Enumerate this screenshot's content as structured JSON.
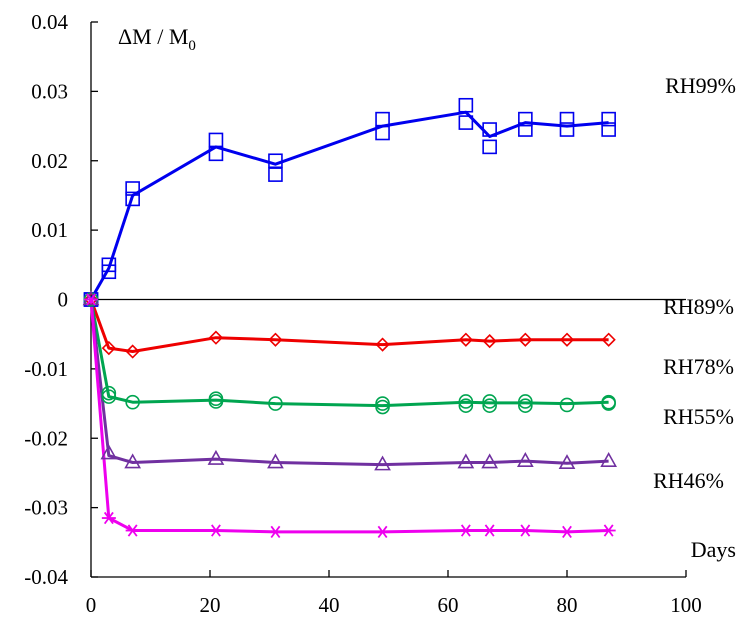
{
  "chart_data": {
    "type": "line",
    "ylabel": "ΔM / M0",
    "ylabel_main": "ΔM / M",
    "ylabel_sub": "0",
    "xlabel": "Days",
    "xlim": [
      0,
      100
    ],
    "ylim": [
      -0.04,
      0.04
    ],
    "x_ticks": [
      0,
      20,
      40,
      60,
      80,
      100
    ],
    "x_tick_labels": [
      "0",
      "20",
      "40",
      "60",
      "80",
      "100"
    ],
    "y_ticks": [
      0.04,
      0.03,
      0.02,
      0.01,
      0,
      -0.01,
      -0.02,
      -0.03,
      -0.04
    ],
    "y_tick_labels": [
      "0.04",
      "0.03",
      "0.02",
      "0.01",
      "0",
      "-0.01",
      "-0.02",
      "-0.03",
      "-0.04"
    ],
    "grid": false,
    "series": [
      {
        "name": "RH99%",
        "color": "#0000ee",
        "marker": "square",
        "line_x": [
          0,
          3,
          7,
          21,
          31,
          49,
          63,
          67,
          73,
          80,
          87
        ],
        "line_y": [
          0,
          0.0045,
          0.015,
          0.022,
          0.0195,
          0.025,
          0.027,
          0.0235,
          0.0255,
          0.025,
          0.0255
        ],
        "points_x": [
          0,
          0,
          3,
          3,
          7,
          7,
          21,
          21,
          31,
          31,
          49,
          49,
          63,
          63,
          67,
          67,
          73,
          73,
          80,
          80,
          87,
          87
        ],
        "points_y": [
          0,
          0,
          0.004,
          0.005,
          0.0145,
          0.016,
          0.021,
          0.023,
          0.018,
          0.02,
          0.024,
          0.026,
          0.0255,
          0.028,
          0.022,
          0.0245,
          0.0245,
          0.026,
          0.0245,
          0.026,
          0.0245,
          0.026
        ]
      },
      {
        "name": "RH89%",
        "color": "#ee0000",
        "marker": "diamond",
        "line_x": [
          0,
          3,
          7,
          21,
          31,
          49,
          63,
          67,
          73,
          80,
          87
        ],
        "line_y": [
          0,
          -0.007,
          -0.0075,
          -0.0055,
          -0.0058,
          -0.0065,
          -0.0058,
          -0.006,
          -0.0058,
          -0.0058,
          -0.0058
        ],
        "points_x": [
          0,
          3,
          7,
          21,
          31,
          49,
          63,
          67,
          73,
          80,
          87
        ],
        "points_y": [
          0,
          -0.007,
          -0.0075,
          -0.0055,
          -0.0058,
          -0.0065,
          -0.0058,
          -0.006,
          -0.0058,
          -0.0058,
          -0.0058
        ]
      },
      {
        "name": "RH78%",
        "color": "#00a550",
        "marker": "circle",
        "line_x": [
          0,
          3,
          7,
          21,
          31,
          49,
          63,
          67,
          73,
          80,
          87
        ],
        "line_y": [
          0,
          -0.014,
          -0.0148,
          -0.0145,
          -0.015,
          -0.0153,
          -0.0148,
          -0.0149,
          -0.0149,
          -0.015,
          -0.0148
        ],
        "points_x": [
          0,
          3,
          3,
          7,
          21,
          21,
          31,
          49,
          49,
          63,
          63,
          67,
          67,
          73,
          73,
          80,
          87,
          87
        ],
        "points_y": [
          0,
          -0.0135,
          -0.014,
          -0.0148,
          -0.0143,
          -0.0147,
          -0.015,
          -0.015,
          -0.0155,
          -0.0147,
          -0.0153,
          -0.0147,
          -0.0153,
          -0.0147,
          -0.0153,
          -0.0152,
          -0.0148,
          -0.015
        ]
      },
      {
        "name": "RH55%",
        "color": "#7030a0",
        "marker": "triangle",
        "line_x": [
          0,
          3,
          7,
          21,
          31,
          49,
          63,
          67,
          73,
          80,
          87
        ],
        "line_y": [
          0,
          -0.0225,
          -0.0235,
          -0.023,
          -0.0235,
          -0.0238,
          -0.0235,
          -0.0235,
          -0.0233,
          -0.0236,
          -0.0233
        ],
        "points_x": [
          0,
          3,
          7,
          21,
          31,
          49,
          63,
          67,
          73,
          80,
          87
        ],
        "points_y": [
          0,
          -0.0222,
          -0.0235,
          -0.023,
          -0.0235,
          -0.0238,
          -0.0235,
          -0.0235,
          -0.0233,
          -0.0236,
          -0.0233
        ]
      },
      {
        "name": "RH46%",
        "color": "#ee00ee",
        "marker": "asterisk",
        "line_x": [
          0,
          3,
          7,
          21,
          31,
          49,
          63,
          67,
          73,
          80,
          87
        ],
        "line_y": [
          0,
          -0.0315,
          -0.0333,
          -0.0333,
          -0.0335,
          -0.0335,
          -0.0333,
          -0.0333,
          -0.0333,
          -0.0335,
          -0.0333
        ],
        "points_x": [
          0,
          3,
          7,
          21,
          31,
          49,
          63,
          67,
          73,
          80,
          87
        ],
        "points_y": [
          0,
          -0.0315,
          -0.0333,
          -0.0333,
          -0.0335,
          -0.0335,
          -0.0333,
          -0.0333,
          -0.0333,
          -0.0335,
          -0.0333
        ]
      }
    ]
  }
}
